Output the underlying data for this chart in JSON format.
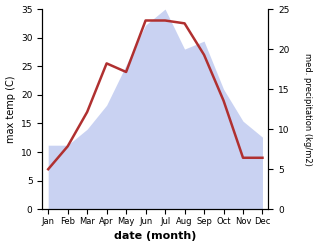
{
  "months": [
    "Jan",
    "Feb",
    "Mar",
    "Apr",
    "May",
    "Jun",
    "Jul",
    "Aug",
    "Sep",
    "Oct",
    "Nov",
    "Dec"
  ],
  "month_x": [
    1,
    2,
    3,
    4,
    5,
    6,
    7,
    8,
    9,
    10,
    11,
    12
  ],
  "temperature": [
    7,
    11,
    17,
    25.5,
    24,
    33,
    33,
    32.5,
    27,
    19,
    9,
    9
  ],
  "precipitation": [
    8,
    8,
    10,
    13,
    18,
    23,
    25,
    20,
    21,
    15,
    11,
    9
  ],
  "temp_ylim": [
    0,
    35
  ],
  "precip_ylim": [
    0,
    25
  ],
  "temp_yticks": [
    0,
    5,
    10,
    15,
    20,
    25,
    30,
    35
  ],
  "precip_yticks": [
    0,
    5,
    10,
    15,
    20,
    25
  ],
  "xlabel": "date (month)",
  "ylabel_left": "max temp (C)",
  "ylabel_right": "med. precipitation (kg/m2)",
  "line_color": "#b03030",
  "fill_color": "#b8c4ee",
  "fill_alpha": 0.75,
  "line_width": 1.8,
  "bg_color": "#ffffff"
}
